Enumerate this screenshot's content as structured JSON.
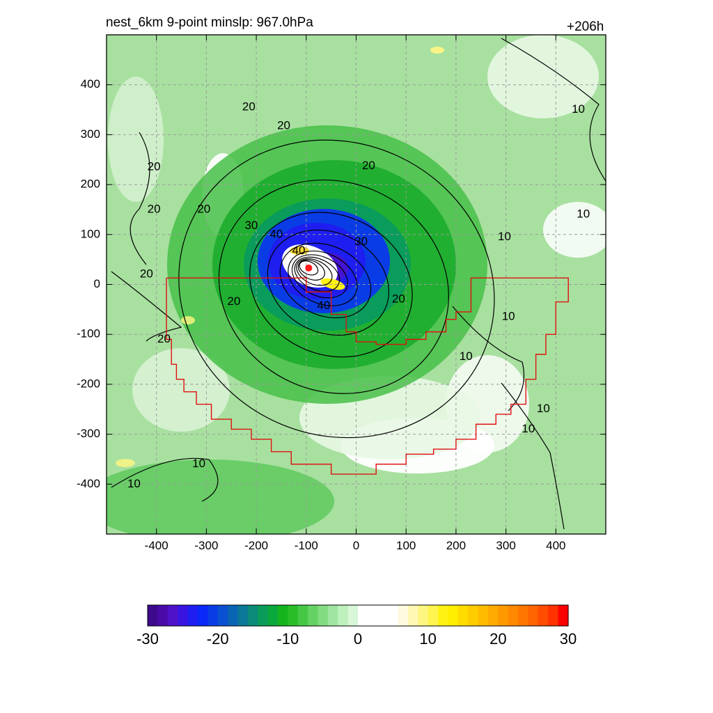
{
  "title": "nest_6km  9-point minslp: 967.0hPa",
  "time_label": "+206h",
  "colors": {
    "frame": "#000000",
    "grid": "#9a9a9a",
    "domain_outline": "#e01010",
    "center_marker": "#ff1a1a",
    "contour": "#000000"
  },
  "chart_data": {
    "type": "heatmap",
    "x": {
      "min": -500,
      "max": 500,
      "ticks": [
        -400,
        -300,
        -200,
        -100,
        0,
        100,
        200,
        300,
        400
      ],
      "tick_labels": [
        "-400",
        "-300",
        "-200",
        "-100",
        "0",
        "100",
        "200",
        "300",
        "400"
      ]
    },
    "y": {
      "min": -500,
      "max": 500,
      "ticks": [
        400,
        300,
        200,
        100,
        0,
        -100,
        -200,
        -300,
        -400
      ],
      "tick_labels": [
        "400",
        "300",
        "200",
        "100",
        "0",
        "-100",
        "-200",
        "-300",
        "-400"
      ]
    },
    "grid": true,
    "storm_center": {
      "x": -95,
      "y": 33
    },
    "contour_labels": [
      {
        "text": "40",
        "x": -115,
        "y": 67
      },
      {
        "text": "40",
        "x": -65,
        "y": -43
      },
      {
        "text": "30",
        "x": -210,
        "y": 117
      },
      {
        "text": "30",
        "x": 10,
        "y": 85
      },
      {
        "text": "40",
        "x": -160,
        "y": 100
      },
      {
        "text": "20",
        "x": -215,
        "y": 355
      },
      {
        "text": "20",
        "x": -145,
        "y": 317
      },
      {
        "text": "20",
        "x": 25,
        "y": 237
      },
      {
        "text": "20",
        "x": -405,
        "y": 235
      },
      {
        "text": "20",
        "x": -405,
        "y": 150
      },
      {
        "text": "20",
        "x": -305,
        "y": 150
      },
      {
        "text": "20",
        "x": -420,
        "y": 20
      },
      {
        "text": "20",
        "x": -245,
        "y": -35
      },
      {
        "text": "20",
        "x": 85,
        "y": -30
      },
      {
        "text": "20",
        "x": -385,
        "y": -110
      },
      {
        "text": "10",
        "x": 445,
        "y": 350
      },
      {
        "text": "10",
        "x": 455,
        "y": 140
      },
      {
        "text": "10",
        "x": 297,
        "y": 95
      },
      {
        "text": "10",
        "x": 305,
        "y": -65
      },
      {
        "text": "10",
        "x": 220,
        "y": -145
      },
      {
        "text": "10",
        "x": 375,
        "y": -250
      },
      {
        "text": "10",
        "x": 345,
        "y": -290
      },
      {
        "text": "10",
        "x": -315,
        "y": -360
      },
      {
        "text": "10",
        "x": -445,
        "y": -400
      }
    ],
    "colorbar": {
      "min": -30,
      "max": 30,
      "ticks": [
        -30,
        -20,
        -10,
        0,
        10,
        20,
        30
      ],
      "tick_labels": [
        "-30",
        "-20",
        "-10",
        "0",
        "10",
        "20",
        "30"
      ],
      "colors": [
        "#3c0a8c",
        "#4a0aa8",
        "#4f12c8",
        "#3a14e0",
        "#1e1ef0",
        "#0a28f8",
        "#0a3ce6",
        "#0a50d2",
        "#0a64b4",
        "#0a7896",
        "#0a8c78",
        "#0a9c5a",
        "#0aa83c",
        "#14b41e",
        "#28be28",
        "#46c846",
        "#64d264",
        "#82dc82",
        "#a0e6a0",
        "#bef0be",
        "#d8f6d8",
        "#ffffff",
        "#ffffff",
        "#ffffff",
        "#ffffff",
        "#fffae0",
        "#fff8b4",
        "#fff682",
        "#fff450",
        "#fff214",
        "#ffee00",
        "#ffdc00",
        "#ffcc00",
        "#ffbb00",
        "#ffaa00",
        "#ff9900",
        "#ff8800",
        "#ff7700",
        "#ff6400",
        "#ff4c00",
        "#ff3200",
        "#ff0000"
      ]
    }
  }
}
